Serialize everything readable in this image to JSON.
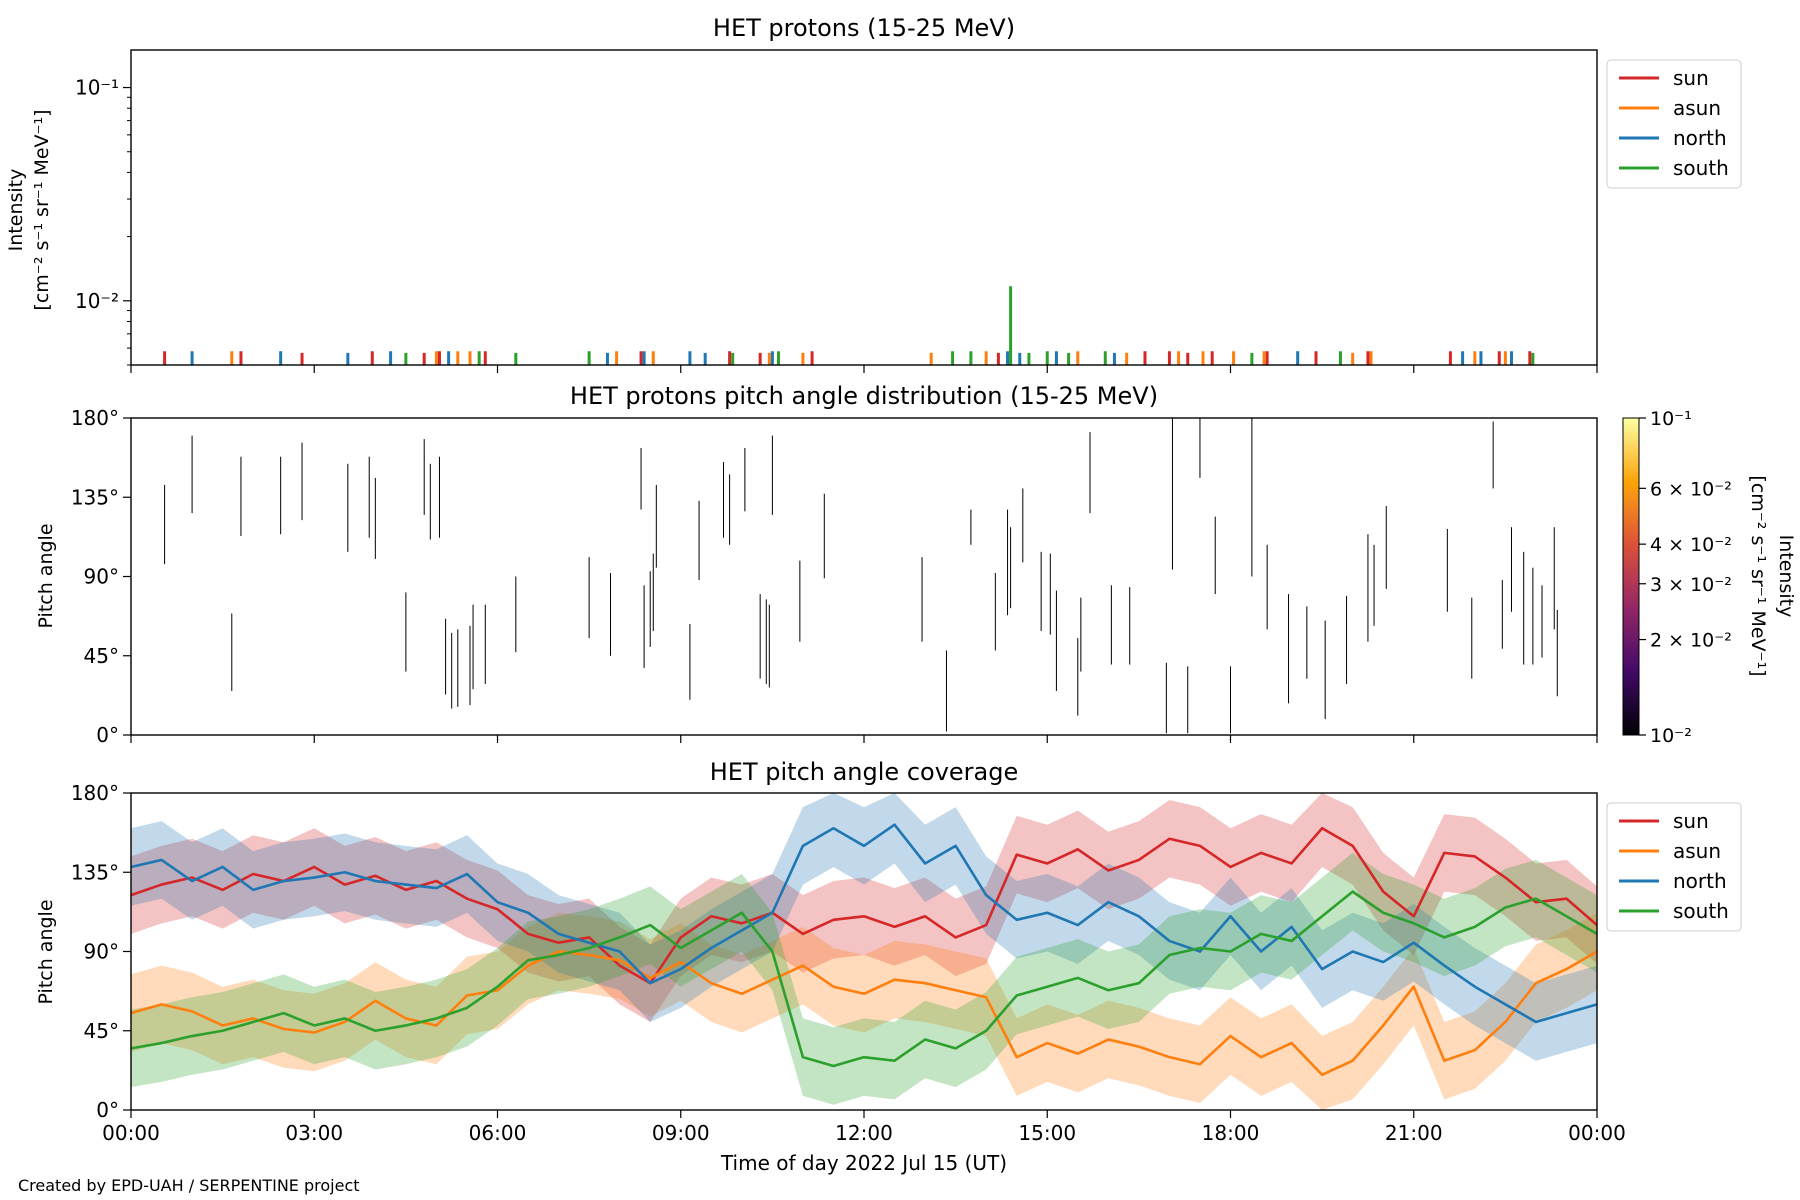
{
  "figure": {
    "credit": "Created by EPD-UAH / SERPENTINE project",
    "xlabel": "Time of day 2022 Jul 15 (UT)",
    "xticks": [
      "00:00",
      "03:00",
      "06:00",
      "09:00",
      "12:00",
      "15:00",
      "18:00",
      "21:00",
      "00:00"
    ]
  },
  "colors": {
    "sun": "#d62728",
    "asun": "#ff7f0e",
    "north": "#1f77b4",
    "south": "#2ca02c"
  },
  "legend": [
    "sun",
    "asun",
    "north",
    "south"
  ],
  "chart_data": [
    {
      "type": "bar",
      "title": "HET protons (15-25 MeV)",
      "ylabel_line1": "Intensity",
      "ylabel_line2": "[cm⁻² s⁻¹ sr⁻¹ MeV⁻¹]",
      "yscale": "log",
      "ylim": [
        0.005,
        0.15
      ],
      "yticks": [
        {
          "value": 0.01,
          "label": "10⁻²"
        },
        {
          "value": 0.1,
          "label": "10⁻¹"
        }
      ],
      "xlim_hours": [
        0,
        24
      ],
      "legend_placement": "top-right",
      "baseline": 0.005,
      "series": [
        {
          "name": "sun",
          "x_hours": [
            0.55,
            1.8,
            2.8,
            3.95,
            4.8,
            5.05,
            5.8,
            8.35,
            9.8,
            10.3,
            11.15,
            14.2,
            16.6,
            17.0,
            17.3,
            17.7,
            18.6,
            19.4,
            20.25,
            21.6,
            22.4,
            22.9
          ],
          "values": [
            0.0058,
            0.0058,
            0.0057,
            0.0058,
            0.0057,
            0.0058,
            0.0058,
            0.0058,
            0.0058,
            0.0057,
            0.0058,
            0.0057,
            0.0058,
            0.0058,
            0.0057,
            0.0058,
            0.0058,
            0.0058,
            0.0058,
            0.0058,
            0.0058,
            0.0058
          ]
        },
        {
          "name": "asun",
          "x_hours": [
            1.65,
            5.0,
            5.35,
            5.55,
            7.95,
            8.55,
            10.45,
            11.0,
            13.1,
            14.0,
            15.5,
            16.3,
            17.15,
            17.55,
            18.05,
            18.55,
            20.0,
            20.3,
            22.0,
            22.5
          ],
          "values": [
            0.0058,
            0.0058,
            0.0058,
            0.0058,
            0.0058,
            0.0058,
            0.0057,
            0.0057,
            0.0057,
            0.0058,
            0.0058,
            0.0057,
            0.0058,
            0.0058,
            0.0058,
            0.0058,
            0.0057,
            0.0058,
            0.0058,
            0.0058
          ]
        },
        {
          "name": "north",
          "x_hours": [
            1.0,
            2.45,
            3.55,
            4.25,
            5.2,
            7.8,
            8.4,
            9.15,
            9.4,
            10.5,
            14.35,
            14.55,
            15.15,
            16.1,
            19.1,
            21.8,
            22.1,
            22.6
          ],
          "values": [
            0.0058,
            0.0058,
            0.0057,
            0.0058,
            0.0058,
            0.0057,
            0.0058,
            0.0058,
            0.0057,
            0.0058,
            0.0058,
            0.0057,
            0.0058,
            0.0057,
            0.0058,
            0.0058,
            0.0058,
            0.0058
          ]
        },
        {
          "name": "south",
          "x_hours": [
            4.5,
            5.7,
            6.3,
            7.5,
            9.85,
            10.6,
            13.45,
            13.75,
            14.4,
            14.7,
            15.0,
            15.35,
            15.95,
            18.35,
            19.8,
            22.95
          ],
          "values": [
            0.0057,
            0.0058,
            0.0057,
            0.0058,
            0.0057,
            0.0058,
            0.0058,
            0.0058,
            0.0117,
            0.0057,
            0.0058,
            0.0057,
            0.0058,
            0.0057,
            0.0058,
            0.0057
          ]
        }
      ]
    },
    {
      "type": "heatmap",
      "title": "HET protons pitch angle distribution (15-25 MeV)",
      "ylabel": "Pitch angle",
      "ylim": [
        0,
        180
      ],
      "yticks": [
        "0°",
        "45°",
        "90°",
        "135°",
        "180°"
      ],
      "yticks_values": [
        0,
        45,
        90,
        135,
        180
      ],
      "xlim_hours": [
        0,
        24
      ],
      "segments": [
        [
          0.55,
          97,
          142
        ],
        [
          1.0,
          126,
          170
        ],
        [
          1.65,
          25,
          69
        ],
        [
          1.8,
          113,
          158
        ],
        [
          2.45,
          114,
          158
        ],
        [
          2.8,
          122,
          166
        ],
        [
          3.55,
          104,
          154
        ],
        [
          3.9,
          112,
          158
        ],
        [
          4.0,
          100,
          146
        ],
        [
          4.5,
          36,
          81
        ],
        [
          4.8,
          125,
          168
        ],
        [
          4.9,
          111,
          154
        ],
        [
          5.05,
          112,
          158
        ],
        [
          5.15,
          23,
          66
        ],
        [
          5.25,
          15,
          58
        ],
        [
          5.35,
          16,
          60
        ],
        [
          5.55,
          17,
          62
        ],
        [
          5.6,
          26,
          74
        ],
        [
          5.8,
          29,
          74
        ],
        [
          6.3,
          47,
          90
        ],
        [
          7.5,
          55,
          101
        ],
        [
          7.85,
          45,
          92
        ],
        [
          8.35,
          128,
          163
        ],
        [
          8.4,
          38,
          85
        ],
        [
          8.5,
          50,
          93
        ],
        [
          8.55,
          59,
          103
        ],
        [
          8.6,
          95,
          142
        ],
        [
          9.15,
          20,
          63
        ],
        [
          9.3,
          88,
          133
        ],
        [
          9.7,
          112,
          155
        ],
        [
          9.8,
          108,
          148
        ],
        [
          10.05,
          127,
          163
        ],
        [
          10.3,
          32,
          80
        ],
        [
          10.4,
          29,
          77
        ],
        [
          10.45,
          27,
          74
        ],
        [
          10.5,
          125,
          170
        ],
        [
          10.95,
          53,
          99
        ],
        [
          11.35,
          89,
          137
        ],
        [
          12.95,
          53,
          101
        ],
        [
          13.35,
          2,
          48
        ],
        [
          13.75,
          108,
          128
        ],
        [
          14.15,
          48,
          92
        ],
        [
          14.35,
          68,
          128
        ],
        [
          14.4,
          72,
          118
        ],
        [
          14.6,
          98,
          140
        ],
        [
          14.9,
          59,
          104
        ],
        [
          15.05,
          57,
          103
        ],
        [
          15.15,
          25,
          82
        ],
        [
          15.5,
          11,
          55
        ],
        [
          15.55,
          36,
          78
        ],
        [
          15.7,
          126,
          172
        ],
        [
          16.05,
          40,
          85
        ],
        [
          16.35,
          40,
          84
        ],
        [
          16.95,
          1,
          41
        ],
        [
          17.05,
          94,
          180
        ],
        [
          17.3,
          1,
          39
        ],
        [
          17.5,
          146,
          180
        ],
        [
          17.75,
          80,
          124
        ],
        [
          18.0,
          1,
          39
        ],
        [
          18.35,
          90,
          180
        ],
        [
          18.6,
          60,
          108
        ],
        [
          18.95,
          18,
          80
        ],
        [
          19.25,
          32,
          73
        ],
        [
          19.55,
          9,
          65
        ],
        [
          19.9,
          29,
          79
        ],
        [
          20.25,
          53,
          114
        ],
        [
          20.35,
          62,
          108
        ],
        [
          20.55,
          83,
          130
        ],
        [
          21.55,
          70,
          117
        ],
        [
          21.95,
          32,
          78
        ],
        [
          22.3,
          140,
          178
        ],
        [
          22.45,
          49,
          88
        ],
        [
          22.6,
          70,
          118
        ],
        [
          22.8,
          40,
          104
        ],
        [
          22.95,
          40,
          95
        ],
        [
          23.1,
          44,
          85
        ],
        [
          23.3,
          60,
          118
        ],
        [
          23.35,
          22,
          71
        ]
      ],
      "colorbar": {
        "label": "Intensity",
        "label_units": "[cm⁻² s⁻¹ sr⁻¹ MeV⁻¹]",
        "scale": "log",
        "range": [
          0.01,
          0.1
        ],
        "major_ticks": [
          {
            "value": 0.01,
            "label": "10⁻²"
          },
          {
            "value": 0.1,
            "label": "10⁻¹"
          }
        ],
        "minor_ticks": [
          {
            "value": 0.02,
            "label": "2 × 10⁻²"
          },
          {
            "value": 0.03,
            "label": "3 × 10⁻²"
          },
          {
            "value": 0.04,
            "label": "4 × 10⁻²"
          },
          {
            "value": 0.06,
            "label": "6 × 10⁻²"
          }
        ],
        "colormap": [
          "#000004",
          "#420a68",
          "#932667",
          "#dd513a",
          "#fca50a",
          "#fcffa4"
        ]
      }
    },
    {
      "type": "line",
      "title": "HET pitch angle coverage",
      "ylabel": "Pitch angle",
      "ylim": [
        0,
        180
      ],
      "yticks": [
        "0°",
        "45°",
        "90°",
        "135°",
        "180°"
      ],
      "yticks_values": [
        0,
        45,
        90,
        135,
        180
      ],
      "xlim_hours": [
        0,
        24
      ],
      "legend_placement": "top-right",
      "band_halfwidth_deg": 22,
      "x_hours": [
        0,
        0.5,
        1,
        1.5,
        2,
        2.5,
        3,
        3.5,
        4,
        4.5,
        5,
        5.5,
        6,
        6.5,
        7,
        7.5,
        8,
        8.5,
        9,
        9.5,
        10,
        10.5,
        11,
        11.5,
        12,
        12.5,
        13,
        13.5,
        14,
        14.5,
        15,
        15.5,
        16,
        16.5,
        17,
        17.5,
        18,
        18.5,
        19,
        19.5,
        20,
        20.5,
        21,
        21.5,
        22,
        22.5,
        23,
        23.5,
        24
      ],
      "series": [
        {
          "name": "sun",
          "values": [
            122,
            128,
            132,
            125,
            134,
            130,
            138,
            128,
            133,
            125,
            130,
            120,
            114,
            100,
            95,
            98,
            82,
            72,
            98,
            110,
            106,
            112,
            100,
            108,
            110,
            104,
            110,
            98,
            105,
            145,
            140,
            148,
            136,
            142,
            154,
            150,
            138,
            146,
            140,
            160,
            150,
            124,
            110,
            146,
            144,
            132,
            118,
            120,
            105
          ]
        },
        {
          "name": "asun",
          "values": [
            55,
            60,
            56,
            48,
            52,
            46,
            44,
            50,
            62,
            52,
            48,
            65,
            68,
            82,
            90,
            88,
            85,
            75,
            84,
            72,
            66,
            74,
            82,
            70,
            66,
            74,
            72,
            68,
            64,
            30,
            38,
            32,
            40,
            36,
            30,
            26,
            42,
            30,
            38,
            20,
            28,
            48,
            70,
            28,
            34,
            50,
            72,
            80,
            90
          ]
        },
        {
          "name": "north",
          "values": [
            138,
            142,
            130,
            138,
            125,
            130,
            132,
            135,
            130,
            128,
            126,
            134,
            118,
            112,
            100,
            95,
            90,
            72,
            80,
            92,
            102,
            112,
            150,
            160,
            150,
            162,
            140,
            150,
            122,
            108,
            112,
            105,
            118,
            110,
            96,
            90,
            110,
            90,
            104,
            80,
            90,
            84,
            95,
            82,
            70,
            60,
            50,
            55,
            60
          ]
        },
        {
          "name": "south",
          "values": [
            35,
            38,
            42,
            45,
            50,
            55,
            48,
            52,
            45,
            48,
            52,
            58,
            70,
            85,
            88,
            92,
            98,
            105,
            92,
            102,
            112,
            90,
            30,
            25,
            30,
            28,
            40,
            35,
            45,
            65,
            70,
            75,
            68,
            72,
            88,
            92,
            90,
            100,
            96,
            110,
            124,
            112,
            106,
            98,
            104,
            115,
            120,
            110,
            100
          ]
        }
      ]
    }
  ]
}
